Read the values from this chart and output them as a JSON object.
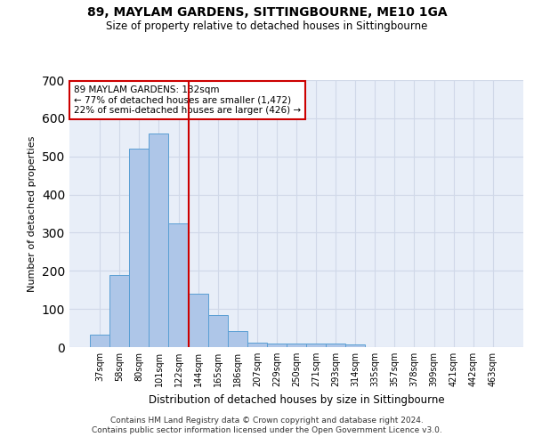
{
  "title": "89, MAYLAM GARDENS, SITTINGBOURNE, ME10 1GA",
  "subtitle": "Size of property relative to detached houses in Sittingbourne",
  "xlabel": "Distribution of detached houses by size in Sittingbourne",
  "ylabel": "Number of detached properties",
  "footer_line1": "Contains HM Land Registry data © Crown copyright and database right 2024.",
  "footer_line2": "Contains public sector information licensed under the Open Government Licence v3.0.",
  "categories": [
    "37sqm",
    "58sqm",
    "80sqm",
    "101sqm",
    "122sqm",
    "144sqm",
    "165sqm",
    "186sqm",
    "207sqm",
    "229sqm",
    "250sqm",
    "271sqm",
    "293sqm",
    "314sqm",
    "335sqm",
    "357sqm",
    "378sqm",
    "399sqm",
    "421sqm",
    "442sqm",
    "463sqm"
  ],
  "values": [
    32,
    190,
    520,
    560,
    325,
    140,
    85,
    42,
    12,
    10,
    10,
    10,
    10,
    7,
    0,
    0,
    0,
    0,
    0,
    0,
    0
  ],
  "bar_color": "#aec6e8",
  "bar_edge_color": "#5a9fd4",
  "grid_color": "#d0d8e8",
  "background_color": "#e8eef8",
  "vline_color": "#cc0000",
  "annotation_text": "89 MAYLAM GARDENS: 132sqm\n← 77% of detached houses are smaller (1,472)\n22% of semi-detached houses are larger (426) →",
  "annotation_box_color": "#ffffff",
  "annotation_box_edge": "#cc0000",
  "ylim": [
    0,
    700
  ],
  "yticks": [
    0,
    100,
    200,
    300,
    400,
    500,
    600,
    700
  ],
  "vline_pos": 4.5
}
